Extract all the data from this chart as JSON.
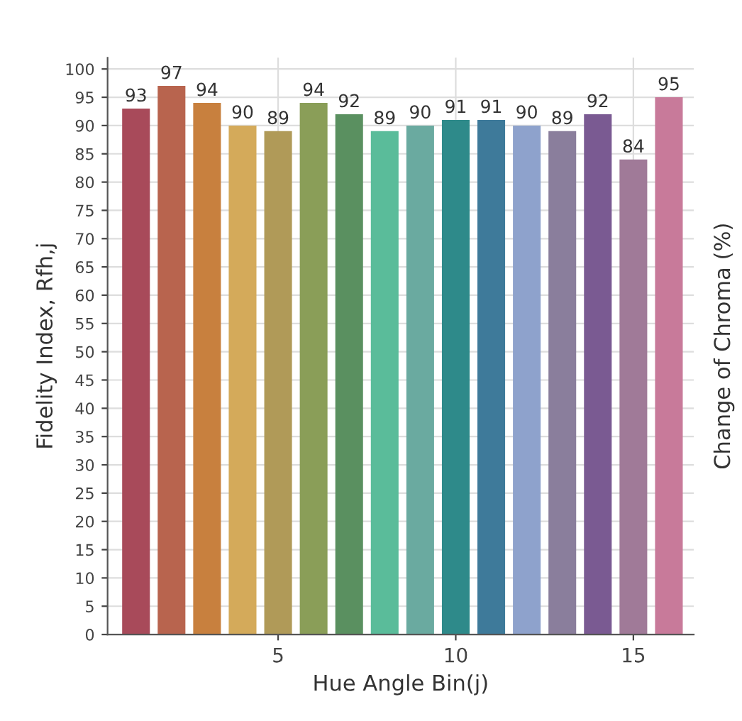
{
  "chart_data": {
    "type": "bar",
    "xlabel": "Hue Angle Bin(j)",
    "ylabel": "Fidelity Index, Rfh,j",
    "y2label": "Change of Chroma (%)",
    "x": [
      1,
      2,
      3,
      4,
      5,
      6,
      7,
      8,
      9,
      10,
      11,
      12,
      13,
      14,
      15,
      16
    ],
    "values": [
      93,
      97,
      94,
      90,
      89,
      94,
      92,
      89,
      90,
      91,
      91,
      90,
      89,
      92,
      84,
      95
    ],
    "colors": [
      "#a84a5a",
      "#b8644e",
      "#c8803e",
      "#d4aa5a",
      "#b09a58",
      "#8a9e58",
      "#5a9060",
      "#5abc9a",
      "#6aaaa0",
      "#2e8a8a",
      "#3e7a9a",
      "#8ea2cc",
      "#8a7e9c",
      "#7a5a92",
      "#a07a98",
      "#c87a9a"
    ],
    "xlim": [
      0.2,
      16.7
    ],
    "xticks": [
      5,
      10,
      15
    ],
    "ylim": [
      0,
      102
    ],
    "yticks": [
      0,
      5,
      10,
      15,
      20,
      25,
      30,
      35,
      40,
      45,
      50,
      55,
      60,
      65,
      70,
      75,
      80,
      85,
      90,
      95,
      100
    ],
    "grid": true,
    "data_labels": true
  }
}
